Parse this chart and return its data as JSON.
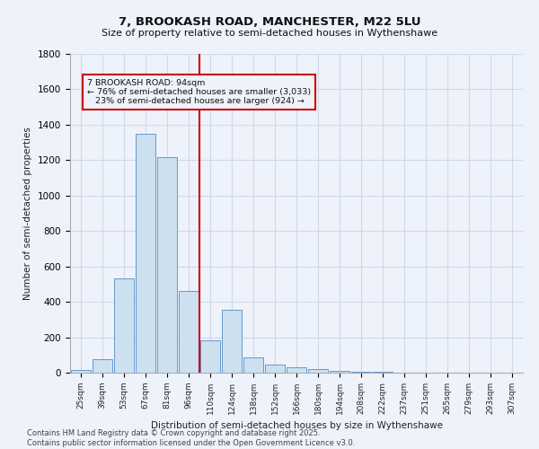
{
  "title": "7, BROOKASH ROAD, MANCHESTER, M22 5LU",
  "subtitle": "Size of property relative to semi-detached houses in Wythenshawe",
  "xlabel": "Distribution of semi-detached houses by size in Wythenshawe",
  "ylabel": "Number of semi-detached properties",
  "footnote": "Contains HM Land Registry data © Crown copyright and database right 2025.\nContains public sector information licensed under the Open Government Licence v3.0.",
  "bar_labels": [
    "25sqm",
    "39sqm",
    "53sqm",
    "67sqm",
    "81sqm",
    "96sqm",
    "110sqm",
    "124sqm",
    "138sqm",
    "152sqm",
    "166sqm",
    "180sqm",
    "194sqm",
    "208sqm",
    "222sqm",
    "237sqm",
    "251sqm",
    "265sqm",
    "279sqm",
    "293sqm",
    "307sqm"
  ],
  "bar_values": [
    15,
    75,
    530,
    1350,
    1215,
    460,
    185,
    355,
    85,
    45,
    30,
    20,
    10,
    5,
    5,
    2,
    0,
    0,
    0,
    0,
    0
  ],
  "bar_color": "#cce0f0",
  "bar_edge_color": "#6699cc",
  "red_line_x": 5.5,
  "property_size": 94,
  "pct_smaller": 76,
  "count_smaller": 3033,
  "pct_larger": 23,
  "count_larger": 924,
  "annotation_box_color": "#cc0000",
  "ylim": [
    0,
    1800
  ],
  "background_color": "#eef2fa",
  "grid_color": "#d0d8e8"
}
